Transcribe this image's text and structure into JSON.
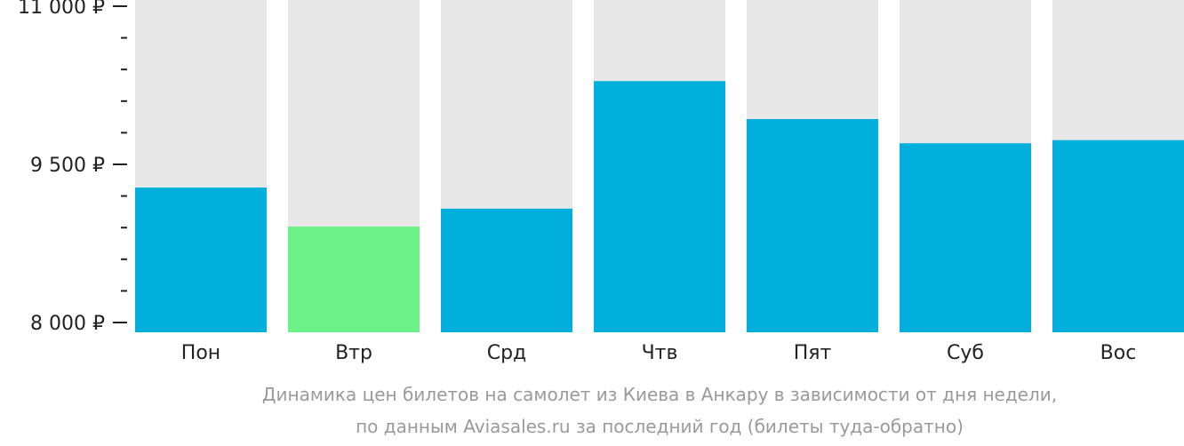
{
  "chart_data": {
    "type": "bar",
    "categories": [
      "Пон",
      "Втр",
      "Срд",
      "Чтв",
      "Пят",
      "Суб",
      "Вос"
    ],
    "values": [
      9280,
      8910,
      9080,
      10290,
      9930,
      9700,
      9730
    ],
    "ylim": [
      8000,
      11000
    ],
    "y_major_ticks": [
      8000,
      9500,
      11000
    ],
    "y_tick_labels": [
      "8 000 ₽",
      "9 500 ₽",
      "11 000 ₽"
    ],
    "minor_tick_step": 300,
    "caption": [
      "Динамика цен билетов на самолет из Киева в Анкару в зависимости от дня недели,",
      "по данным Aviasales.ru за последний год (билеты туда-обратно)"
    ],
    "colors": {
      "bar": "#00afdc",
      "bar_min": "#6cf288",
      "track": "#e8e8e8",
      "axis": "#222222",
      "caption": "#9a9a9a"
    },
    "highlight_index": 1,
    "grid": false,
    "legend": "none"
  }
}
